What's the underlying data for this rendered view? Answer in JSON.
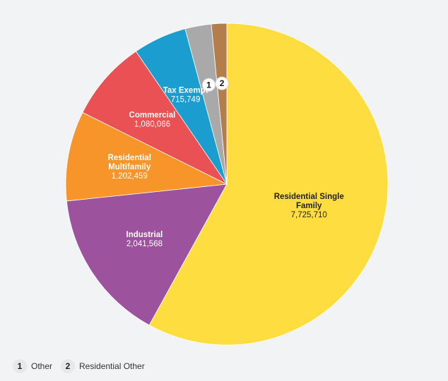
{
  "chart_data": {
    "type": "pie",
    "title": "",
    "start_angle_deg": 0,
    "direction": "clockwise",
    "slices": [
      {
        "label": "Residential Single Family",
        "value": 7725710,
        "display_value": "7,725,710",
        "color": "#fddd3f",
        "label_lines": [
          "Residential Single",
          "Family"
        ],
        "label_dark": true
      },
      {
        "label": "Industrial",
        "value": 2041568,
        "display_value": "2,041,568",
        "color": "#9c529c",
        "label_lines": [
          "Industrial"
        ]
      },
      {
        "label": "Residential Multifamily",
        "value": 1202459,
        "display_value": "1,202,459",
        "color": "#f7952a",
        "label_lines": [
          "Residential",
          "Multifamily"
        ]
      },
      {
        "label": "Commercial",
        "value": 1080066,
        "display_value": "1,080,066",
        "color": "#e95155",
        "label_lines": [
          "Commercial"
        ]
      },
      {
        "label": "Tax Exempt",
        "value": 715749,
        "display_value": "715,749",
        "color": "#1b9dd0",
        "label_lines": [
          "Tax Exempt"
        ]
      },
      {
        "label": "Other",
        "value": 350000,
        "display_value": "",
        "color": "#a9a9a9",
        "badge": "1"
      },
      {
        "label": "Residential Other",
        "value": 205000,
        "display_value": "",
        "color": "#b37d4c",
        "badge": "2"
      }
    ],
    "legend": [
      {
        "badge": "1",
        "label": "Other"
      },
      {
        "badge": "2",
        "label": "Residential Other"
      }
    ],
    "legend_position": "bottom-left"
  },
  "legend": {
    "items": [
      {
        "badge": "1",
        "label": "Other"
      },
      {
        "badge": "2",
        "label": "Residential Other"
      }
    ]
  }
}
